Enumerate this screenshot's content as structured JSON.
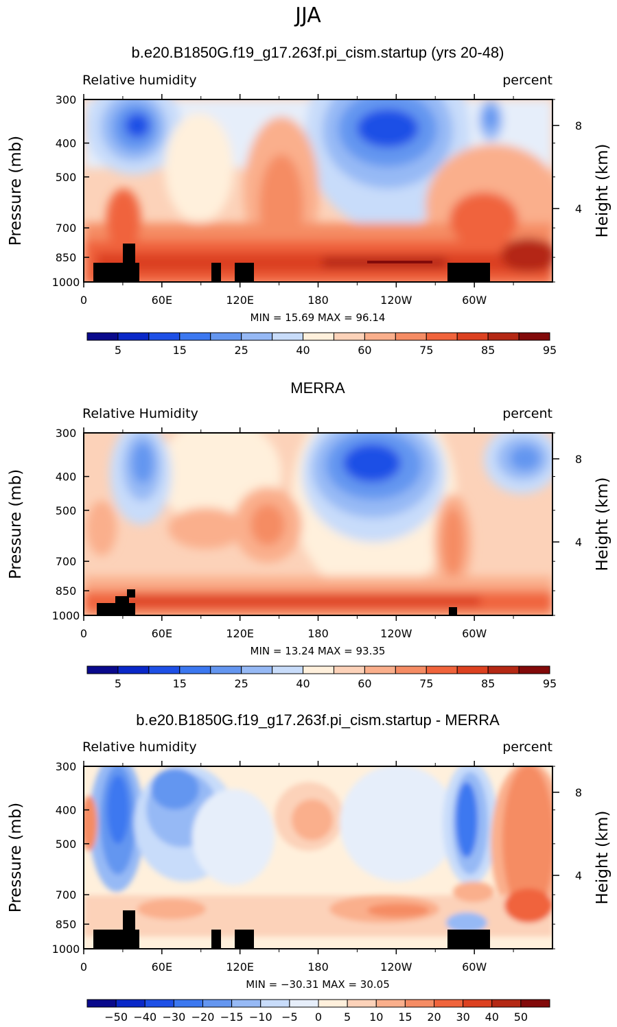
{
  "figure_title": "JJA",
  "chart_data": [
    {
      "type": "contour",
      "title": "b.e20.B1850G.f19_g17.263f.pi_cism.startup (yrs 20-48)",
      "left_label": "Relative humidity",
      "right_label": "percent",
      "ylabel": "Pressure (mb)",
      "y2label": "Height (km)",
      "y_ticks": [
        "300",
        "400",
        "500",
        "700",
        "850",
        "1000"
      ],
      "y2_ticks": [
        "8",
        "4"
      ],
      "x_ticks": [
        "0",
        "60E",
        "120E",
        "180",
        "120W",
        "60W"
      ],
      "min_text": "MIN =   15.69   MAX =   96.14",
      "min": 15.69,
      "max": 96.14,
      "colorbar_labels": [
        "5",
        "15",
        "25",
        "40",
        "60",
        "75",
        "85",
        "95"
      ],
      "colorbar_colors": [
        "#0a0a8c",
        "#0a28c8",
        "#1e50e6",
        "#3c78f0",
        "#6496f0",
        "#96b9f5",
        "#c8dcfa",
        "#fff0dc",
        "#fcd2b9",
        "#faaf8c",
        "#f58c64",
        "#f0643c",
        "#dc4120",
        "#b42814",
        "#820a0a"
      ]
    },
    {
      "type": "contour",
      "title": "MERRA",
      "left_label": "Relative Humidity",
      "right_label": "percent",
      "ylabel": "Pressure (mb)",
      "y2label": "Height (km)",
      "y_ticks": [
        "300",
        "400",
        "500",
        "700",
        "850",
        "1000"
      ],
      "y2_ticks": [
        "8",
        "4"
      ],
      "x_ticks": [
        "0",
        "60E",
        "120E",
        "180",
        "120W",
        "60W"
      ],
      "min_text": "MIN =   13.24   MAX =   93.35",
      "min": 13.24,
      "max": 93.35,
      "colorbar_labels": [
        "5",
        "15",
        "25",
        "40",
        "60",
        "75",
        "85",
        "95"
      ],
      "colorbar_colors": [
        "#0a0a8c",
        "#0a28c8",
        "#1e50e6",
        "#3c78f0",
        "#6496f0",
        "#96b9f5",
        "#c8dcfa",
        "#fff0dc",
        "#fcd2b9",
        "#faaf8c",
        "#f58c64",
        "#f0643c",
        "#dc4120",
        "#b42814",
        "#820a0a"
      ]
    },
    {
      "type": "contour",
      "title": "b.e20.B1850G.f19_g17.263f.pi_cism.startup - MERRA",
      "left_label": "Relative humidity",
      "right_label": "percent",
      "ylabel": "Pressure (mb)",
      "y2label": "Height (km)",
      "y_ticks": [
        "300",
        "400",
        "500",
        "700",
        "850",
        "1000"
      ],
      "y2_ticks": [
        "8",
        "4"
      ],
      "x_ticks": [
        "0",
        "60E",
        "120E",
        "180",
        "120W",
        "60W"
      ],
      "min_text": "MIN = −30.31   MAX =   30.05",
      "min": -30.31,
      "max": 30.05,
      "colorbar_labels": [
        "−50",
        "−40",
        "−30",
        "−20",
        "−15",
        "−10",
        "−5",
        "0",
        "5",
        "10",
        "15",
        "20",
        "30",
        "40",
        "50"
      ],
      "colorbar_colors": [
        "#0a0a8c",
        "#0a28c8",
        "#1e50e6",
        "#3c78f0",
        "#6496f0",
        "#96b9f5",
        "#c8dcfa",
        "#e6eefa",
        "#fff0dc",
        "#fcd2b9",
        "#faaf8c",
        "#f58c64",
        "#f0643c",
        "#dc4120",
        "#b42814",
        "#820a0a"
      ]
    }
  ]
}
